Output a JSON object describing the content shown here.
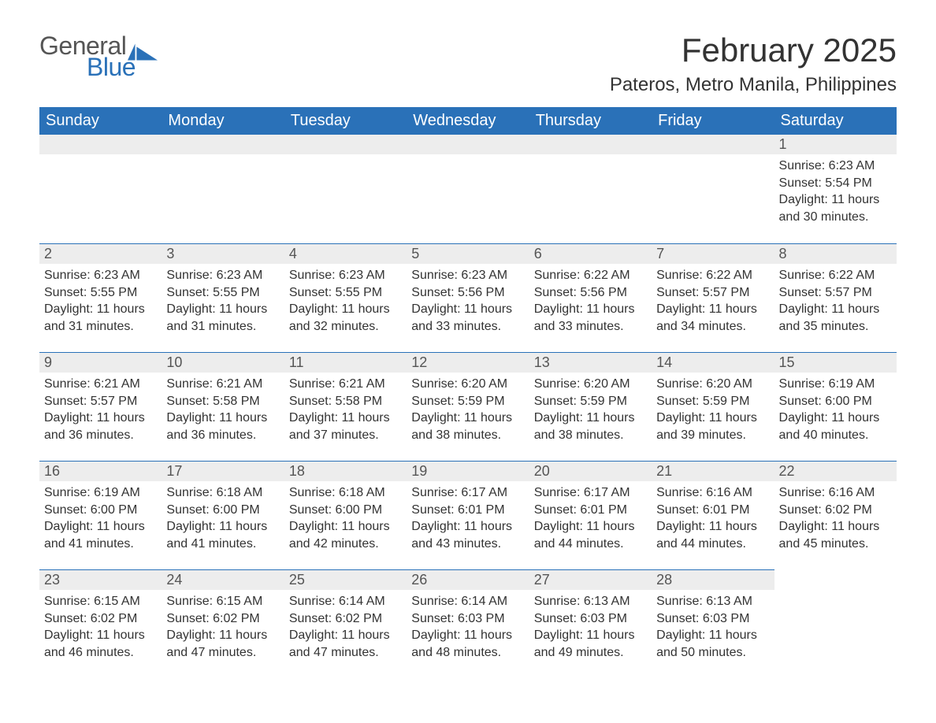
{
  "logo": {
    "text_general": "General",
    "text_blue": "Blue",
    "flag_color": "#2a71b8"
  },
  "title": {
    "month_year": "February 2025",
    "location": "Pateros, Metro Manila, Philippines"
  },
  "colors": {
    "header_bg": "#2a71b8",
    "header_text": "#ffffff",
    "daynum_bg": "#ededed",
    "daynum_border": "#2a71b8",
    "body_text": "#333333",
    "page_bg": "#ffffff"
  },
  "typography": {
    "month_title_fontsize": 42,
    "location_fontsize": 24,
    "weekday_fontsize": 20,
    "daynum_fontsize": 18,
    "body_fontsize": 16
  },
  "weekdays": [
    "Sunday",
    "Monday",
    "Tuesday",
    "Wednesday",
    "Thursday",
    "Friday",
    "Saturday"
  ],
  "labels": {
    "sunrise_prefix": "Sunrise: ",
    "sunset_prefix": "Sunset: ",
    "daylight_prefix": "Daylight: ",
    "daylight_hours_word": " hours",
    "daylight_and": "and ",
    "daylight_minutes_word": " minutes."
  },
  "weeks": [
    [
      {
        "blank": true
      },
      {
        "blank": true
      },
      {
        "blank": true
      },
      {
        "blank": true
      },
      {
        "blank": true
      },
      {
        "blank": true
      },
      {
        "day": "1",
        "sunrise": "6:23 AM",
        "sunset": "5:54 PM",
        "dl_h": "11",
        "dl_m": "30"
      }
    ],
    [
      {
        "day": "2",
        "sunrise": "6:23 AM",
        "sunset": "5:55 PM",
        "dl_h": "11",
        "dl_m": "31"
      },
      {
        "day": "3",
        "sunrise": "6:23 AM",
        "sunset": "5:55 PM",
        "dl_h": "11",
        "dl_m": "31"
      },
      {
        "day": "4",
        "sunrise": "6:23 AM",
        "sunset": "5:55 PM",
        "dl_h": "11",
        "dl_m": "32"
      },
      {
        "day": "5",
        "sunrise": "6:23 AM",
        "sunset": "5:56 PM",
        "dl_h": "11",
        "dl_m": "33"
      },
      {
        "day": "6",
        "sunrise": "6:22 AM",
        "sunset": "5:56 PM",
        "dl_h": "11",
        "dl_m": "33"
      },
      {
        "day": "7",
        "sunrise": "6:22 AM",
        "sunset": "5:57 PM",
        "dl_h": "11",
        "dl_m": "34"
      },
      {
        "day": "8",
        "sunrise": "6:22 AM",
        "sunset": "5:57 PM",
        "dl_h": "11",
        "dl_m": "35"
      }
    ],
    [
      {
        "day": "9",
        "sunrise": "6:21 AM",
        "sunset": "5:57 PM",
        "dl_h": "11",
        "dl_m": "36"
      },
      {
        "day": "10",
        "sunrise": "6:21 AM",
        "sunset": "5:58 PM",
        "dl_h": "11",
        "dl_m": "36"
      },
      {
        "day": "11",
        "sunrise": "6:21 AM",
        "sunset": "5:58 PM",
        "dl_h": "11",
        "dl_m": "37"
      },
      {
        "day": "12",
        "sunrise": "6:20 AM",
        "sunset": "5:59 PM",
        "dl_h": "11",
        "dl_m": "38"
      },
      {
        "day": "13",
        "sunrise": "6:20 AM",
        "sunset": "5:59 PM",
        "dl_h": "11",
        "dl_m": "38"
      },
      {
        "day": "14",
        "sunrise": "6:20 AM",
        "sunset": "5:59 PM",
        "dl_h": "11",
        "dl_m": "39"
      },
      {
        "day": "15",
        "sunrise": "6:19 AM",
        "sunset": "6:00 PM",
        "dl_h": "11",
        "dl_m": "40"
      }
    ],
    [
      {
        "day": "16",
        "sunrise": "6:19 AM",
        "sunset": "6:00 PM",
        "dl_h": "11",
        "dl_m": "41"
      },
      {
        "day": "17",
        "sunrise": "6:18 AM",
        "sunset": "6:00 PM",
        "dl_h": "11",
        "dl_m": "41"
      },
      {
        "day": "18",
        "sunrise": "6:18 AM",
        "sunset": "6:00 PM",
        "dl_h": "11",
        "dl_m": "42"
      },
      {
        "day": "19",
        "sunrise": "6:17 AM",
        "sunset": "6:01 PM",
        "dl_h": "11",
        "dl_m": "43"
      },
      {
        "day": "20",
        "sunrise": "6:17 AM",
        "sunset": "6:01 PM",
        "dl_h": "11",
        "dl_m": "44"
      },
      {
        "day": "21",
        "sunrise": "6:16 AM",
        "sunset": "6:01 PM",
        "dl_h": "11",
        "dl_m": "44"
      },
      {
        "day": "22",
        "sunrise": "6:16 AM",
        "sunset": "6:02 PM",
        "dl_h": "11",
        "dl_m": "45"
      }
    ],
    [
      {
        "day": "23",
        "sunrise": "6:15 AM",
        "sunset": "6:02 PM",
        "dl_h": "11",
        "dl_m": "46"
      },
      {
        "day": "24",
        "sunrise": "6:15 AM",
        "sunset": "6:02 PM",
        "dl_h": "11",
        "dl_m": "47"
      },
      {
        "day": "25",
        "sunrise": "6:14 AM",
        "sunset": "6:02 PM",
        "dl_h": "11",
        "dl_m": "47"
      },
      {
        "day": "26",
        "sunrise": "6:14 AM",
        "sunset": "6:03 PM",
        "dl_h": "11",
        "dl_m": "48"
      },
      {
        "day": "27",
        "sunrise": "6:13 AM",
        "sunset": "6:03 PM",
        "dl_h": "11",
        "dl_m": "49"
      },
      {
        "day": "28",
        "sunrise": "6:13 AM",
        "sunset": "6:03 PM",
        "dl_h": "11",
        "dl_m": "50"
      },
      {
        "blank": true,
        "noborder": true
      }
    ]
  ]
}
